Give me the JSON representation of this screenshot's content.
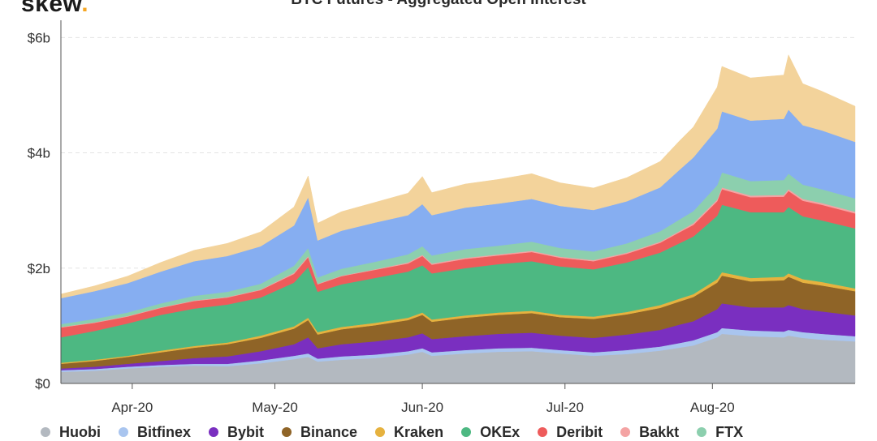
{
  "brand": {
    "name": "skew",
    "dot": "."
  },
  "chart_data": {
    "type": "area",
    "title": "BTC Futures - Aggregated Open Interest",
    "xlabel": "",
    "ylabel": "",
    "x_range": [
      "2020-03-17",
      "2020-08-31"
    ],
    "y_ticks": [
      {
        "value": 0,
        "label": "$0"
      },
      {
        "value": 2,
        "label": "$2b"
      },
      {
        "value": 4,
        "label": "$4b"
      },
      {
        "value": 6,
        "label": "$6b"
      }
    ],
    "ylim": [
      0,
      6.3
    ],
    "x_ticks": [
      {
        "date": "2020-04-01",
        "label": "Apr-20"
      },
      {
        "date": "2020-05-01",
        "label": "May-20"
      },
      {
        "date": "2020-06-01",
        "label": "Jun-20"
      },
      {
        "date": "2020-07-01",
        "label": "Jul-20"
      },
      {
        "date": "2020-08-01",
        "label": "Aug-20"
      }
    ],
    "grid": true,
    "stacked": true,
    "legend_position": "bottom",
    "x": [
      "2020-03-17",
      "2020-03-24",
      "2020-03-31",
      "2020-04-07",
      "2020-04-14",
      "2020-04-21",
      "2020-04-28",
      "2020-05-05",
      "2020-05-08",
      "2020-05-10",
      "2020-05-15",
      "2020-05-22",
      "2020-05-29",
      "2020-06-01",
      "2020-06-03",
      "2020-06-10",
      "2020-06-17",
      "2020-06-24",
      "2020-06-30",
      "2020-07-07",
      "2020-07-14",
      "2020-07-21",
      "2020-07-25",
      "2020-07-28",
      "2020-08-02",
      "2020-08-03",
      "2020-08-09",
      "2020-08-16",
      "2020-08-17",
      "2020-08-20",
      "2020-08-24",
      "2020-08-31"
    ],
    "series": [
      {
        "name": "Huobi",
        "color": "#b3b9c0",
        "values": [
          0.2,
          0.22,
          0.26,
          0.29,
          0.31,
          0.3,
          0.35,
          0.42,
          0.46,
          0.38,
          0.41,
          0.44,
          0.5,
          0.55,
          0.48,
          0.52,
          0.55,
          0.56,
          0.52,
          0.48,
          0.51,
          0.57,
          0.62,
          0.66,
          0.8,
          0.86,
          0.82,
          0.8,
          0.83,
          0.79,
          0.76,
          0.73
        ]
      },
      {
        "name": "Bitfinex",
        "color": "#a9c5ef",
        "values": [
          0.03,
          0.03,
          0.03,
          0.03,
          0.03,
          0.04,
          0.05,
          0.06,
          0.06,
          0.05,
          0.06,
          0.06,
          0.06,
          0.06,
          0.06,
          0.06,
          0.06,
          0.06,
          0.06,
          0.06,
          0.07,
          0.07,
          0.08,
          0.09,
          0.09,
          0.1,
          0.1,
          0.1,
          0.1,
          0.1,
          0.1,
          0.09
        ]
      },
      {
        "name": "Bybit",
        "color": "#7a2fc0",
        "values": [
          0.03,
          0.04,
          0.05,
          0.07,
          0.1,
          0.13,
          0.16,
          0.2,
          0.28,
          0.18,
          0.21,
          0.23,
          0.24,
          0.26,
          0.23,
          0.24,
          0.25,
          0.26,
          0.25,
          0.25,
          0.27,
          0.29,
          0.32,
          0.33,
          0.4,
          0.43,
          0.4,
          0.42,
          0.43,
          0.4,
          0.39,
          0.36
        ]
      },
      {
        "name": "Binance",
        "color": "#8f6427",
        "values": [
          0.08,
          0.1,
          0.12,
          0.15,
          0.18,
          0.21,
          0.23,
          0.27,
          0.3,
          0.24,
          0.26,
          0.28,
          0.3,
          0.32,
          0.3,
          0.32,
          0.33,
          0.34,
          0.32,
          0.33,
          0.35,
          0.38,
          0.4,
          0.42,
          0.46,
          0.48,
          0.45,
          0.47,
          0.49,
          0.46,
          0.45,
          0.42
        ]
      },
      {
        "name": "Kraken",
        "color": "#e6b23f",
        "values": [
          0.02,
          0.02,
          0.02,
          0.03,
          0.03,
          0.03,
          0.04,
          0.04,
          0.04,
          0.04,
          0.04,
          0.04,
          0.04,
          0.04,
          0.04,
          0.04,
          0.04,
          0.04,
          0.04,
          0.04,
          0.04,
          0.05,
          0.05,
          0.05,
          0.06,
          0.06,
          0.06,
          0.06,
          0.06,
          0.06,
          0.06,
          0.05
        ]
      },
      {
        "name": "OKEx",
        "color": "#4db882",
        "values": [
          0.44,
          0.5,
          0.56,
          0.62,
          0.65,
          0.66,
          0.66,
          0.76,
          0.88,
          0.7,
          0.74,
          0.78,
          0.8,
          0.82,
          0.8,
          0.82,
          0.84,
          0.86,
          0.84,
          0.82,
          0.86,
          0.91,
          0.96,
          1.0,
          1.1,
          1.17,
          1.14,
          1.12,
          1.15,
          1.09,
          1.07,
          1.04
        ]
      },
      {
        "name": "Deribit",
        "color": "#ee5b5b",
        "values": [
          0.17,
          0.14,
          0.12,
          0.12,
          0.13,
          0.12,
          0.13,
          0.15,
          0.17,
          0.13,
          0.14,
          0.14,
          0.14,
          0.16,
          0.15,
          0.16,
          0.15,
          0.16,
          0.15,
          0.14,
          0.15,
          0.17,
          0.19,
          0.2,
          0.25,
          0.27,
          0.26,
          0.27,
          0.28,
          0.27,
          0.27,
          0.26
        ]
      },
      {
        "name": "Bakkt",
        "color": "#f4a3a3",
        "values": [
          0.01,
          0.01,
          0.01,
          0.01,
          0.01,
          0.01,
          0.01,
          0.02,
          0.02,
          0.01,
          0.01,
          0.01,
          0.02,
          0.02,
          0.02,
          0.02,
          0.02,
          0.02,
          0.02,
          0.02,
          0.02,
          0.02,
          0.02,
          0.03,
          0.03,
          0.03,
          0.03,
          0.03,
          0.03,
          0.03,
          0.03,
          0.03
        ]
      },
      {
        "name": "FTX",
        "color": "#8ccfae",
        "values": [
          0.05,
          0.06,
          0.06,
          0.07,
          0.08,
          0.09,
          0.1,
          0.12,
          0.14,
          0.11,
          0.12,
          0.13,
          0.14,
          0.15,
          0.14,
          0.15,
          0.15,
          0.16,
          0.15,
          0.15,
          0.16,
          0.18,
          0.2,
          0.21,
          0.25,
          0.26,
          0.25,
          0.26,
          0.27,
          0.25,
          0.24,
          0.23
        ]
      },
      {
        "name": "",
        "color": "#86aef1",
        "values": [
          0.45,
          0.48,
          0.51,
          0.55,
          0.6,
          0.62,
          0.65,
          0.7,
          0.88,
          0.64,
          0.66,
          0.68,
          0.68,
          0.73,
          0.7,
          0.72,
          0.73,
          0.74,
          0.73,
          0.72,
          0.73,
          0.76,
          0.86,
          0.93,
          0.98,
          1.06,
          1.05,
          1.06,
          1.11,
          1.03,
          1.02,
          0.98
        ]
      },
      {
        "name": "",
        "color": "#f3d39b",
        "values": [
          0.07,
          0.09,
          0.12,
          0.16,
          0.19,
          0.22,
          0.25,
          0.32,
          0.37,
          0.3,
          0.33,
          0.35,
          0.38,
          0.48,
          0.39,
          0.41,
          0.42,
          0.44,
          0.4,
          0.38,
          0.41,
          0.45,
          0.5,
          0.53,
          0.72,
          0.78,
          0.74,
          0.76,
          0.95,
          0.72,
          0.68,
          0.62
        ]
      }
    ]
  }
}
